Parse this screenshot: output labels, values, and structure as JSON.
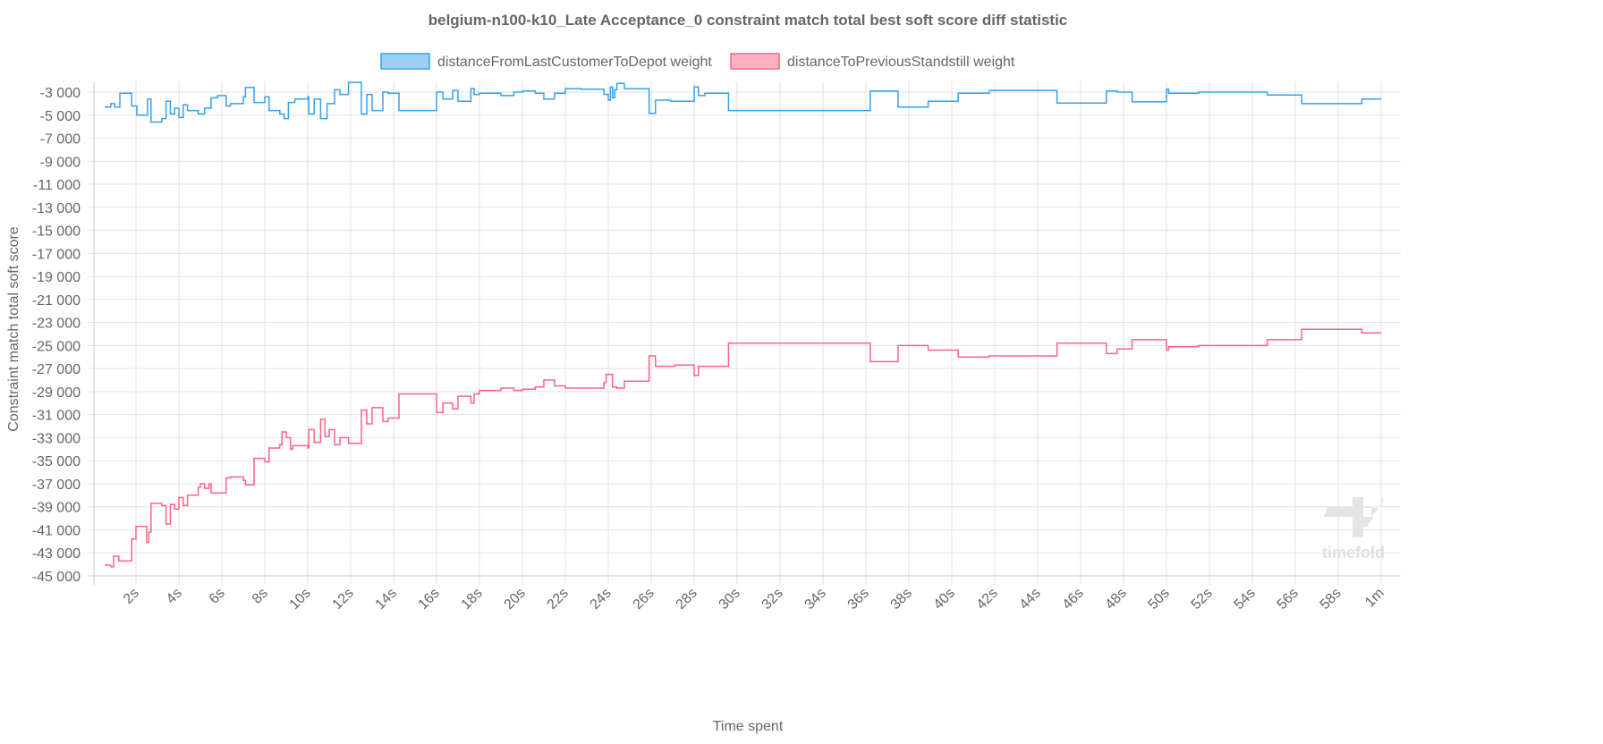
{
  "chart_data": {
    "type": "line",
    "step": true,
    "title": "belgium-n100-k10_Late Acceptance_0 constraint match total best soft score diff statistic",
    "xlabel": "Time spent",
    "ylabel": "Constraint match total soft score",
    "xlim": [
      0,
      61
    ],
    "ylim": [
      -45000,
      -2000
    ],
    "grid": true,
    "legend_position": "top",
    "x_ticks": [
      {
        "value": 2,
        "label": "2s"
      },
      {
        "value": 4,
        "label": "4s"
      },
      {
        "value": 6,
        "label": "6s"
      },
      {
        "value": 8,
        "label": "8s"
      },
      {
        "value": 10,
        "label": "10s"
      },
      {
        "value": 12,
        "label": "12s"
      },
      {
        "value": 14,
        "label": "14s"
      },
      {
        "value": 16,
        "label": "16s"
      },
      {
        "value": 18,
        "label": "18s"
      },
      {
        "value": 20,
        "label": "20s"
      },
      {
        "value": 22,
        "label": "22s"
      },
      {
        "value": 24,
        "label": "24s"
      },
      {
        "value": 26,
        "label": "26s"
      },
      {
        "value": 28,
        "label": "28s"
      },
      {
        "value": 30,
        "label": "30s"
      },
      {
        "value": 32,
        "label": "32s"
      },
      {
        "value": 34,
        "label": "34s"
      },
      {
        "value": 36,
        "label": "36s"
      },
      {
        "value": 38,
        "label": "38s"
      },
      {
        "value": 40,
        "label": "40s"
      },
      {
        "value": 42,
        "label": "42s"
      },
      {
        "value": 44,
        "label": "44s"
      },
      {
        "value": 46,
        "label": "46s"
      },
      {
        "value": 48,
        "label": "48s"
      },
      {
        "value": 50,
        "label": "50s"
      },
      {
        "value": 52,
        "label": "52s"
      },
      {
        "value": 54,
        "label": "54s"
      },
      {
        "value": 56,
        "label": "56s"
      },
      {
        "value": 58,
        "label": "58s"
      },
      {
        "value": 60,
        "label": "1m"
      }
    ],
    "y_ticks": [
      {
        "value": -3000,
        "label": "-3 000"
      },
      {
        "value": -5000,
        "label": "-5 000"
      },
      {
        "value": -7000,
        "label": "-7 000"
      },
      {
        "value": -9000,
        "label": "-9 000"
      },
      {
        "value": -11000,
        "label": "-11 000"
      },
      {
        "value": -13000,
        "label": "-13 000"
      },
      {
        "value": -15000,
        "label": "-15 000"
      },
      {
        "value": -17000,
        "label": "-17 000"
      },
      {
        "value": -19000,
        "label": "-19 000"
      },
      {
        "value": -21000,
        "label": "-21 000"
      },
      {
        "value": -23000,
        "label": "-23 000"
      },
      {
        "value": -25000,
        "label": "-25 000"
      },
      {
        "value": -27000,
        "label": "-27 000"
      },
      {
        "value": -29000,
        "label": "-29 000"
      },
      {
        "value": -31000,
        "label": "-31 000"
      },
      {
        "value": -33000,
        "label": "-33 000"
      },
      {
        "value": -35000,
        "label": "-35 000"
      },
      {
        "value": -37000,
        "label": "-37 000"
      },
      {
        "value": -39000,
        "label": "-39 000"
      },
      {
        "value": -41000,
        "label": "-41 000"
      },
      {
        "value": -43000,
        "label": "-43 000"
      },
      {
        "value": -45000,
        "label": "-45 000"
      }
    ],
    "series": [
      {
        "name": "distanceFromLastCustomerToDepot weight",
        "color": "#36a2eb",
        "fill": "#9ad0f5",
        "points": [
          [
            0.54,
            -4300
          ],
          [
            0.83,
            -4000
          ],
          [
            1.0,
            -4300
          ],
          [
            1.25,
            -3100
          ],
          [
            1.8,
            -4200
          ],
          [
            2.04,
            -5000
          ],
          [
            2.54,
            -3600
          ],
          [
            2.7,
            -5600
          ],
          [
            3.2,
            -5300
          ],
          [
            3.4,
            -3800
          ],
          [
            3.6,
            -4900
          ],
          [
            3.8,
            -4400
          ],
          [
            4.0,
            -5200
          ],
          [
            4.2,
            -4100
          ],
          [
            4.4,
            -4600
          ],
          [
            4.9,
            -4900
          ],
          [
            5.2,
            -4400
          ],
          [
            5.5,
            -3500
          ],
          [
            5.8,
            -3300
          ],
          [
            6.2,
            -4200
          ],
          [
            6.4,
            -4000
          ],
          [
            7.0,
            -3400
          ],
          [
            7.1,
            -2600
          ],
          [
            7.5,
            -3900
          ],
          [
            8.0,
            -3400
          ],
          [
            8.2,
            -4600
          ],
          [
            8.7,
            -4900
          ],
          [
            8.9,
            -5300
          ],
          [
            9.1,
            -3900
          ],
          [
            9.4,
            -3600
          ],
          [
            10.0,
            -3400
          ],
          [
            10.05,
            -4900
          ],
          [
            10.3,
            -3600
          ],
          [
            10.6,
            -5300
          ],
          [
            10.9,
            -4000
          ],
          [
            11.25,
            -2800
          ],
          [
            11.5,
            -3200
          ],
          [
            11.9,
            -2150
          ],
          [
            12.5,
            -4900
          ],
          [
            12.75,
            -3200
          ],
          [
            13.0,
            -4600
          ],
          [
            13.5,
            -3000
          ],
          [
            13.75,
            -3100
          ],
          [
            14.25,
            -4600
          ],
          [
            16.0,
            -3000
          ],
          [
            16.3,
            -3600
          ],
          [
            16.75,
            -2850
          ],
          [
            17.0,
            -3800
          ],
          [
            17.6,
            -2700
          ],
          [
            17.75,
            -3200
          ],
          [
            18.0,
            -3100
          ],
          [
            19.0,
            -3300
          ],
          [
            19.6,
            -3000
          ],
          [
            20.0,
            -2900
          ],
          [
            20.6,
            -3100
          ],
          [
            21.0,
            -3600
          ],
          [
            21.5,
            -3100
          ],
          [
            22.0,
            -2700
          ],
          [
            22.75,
            -2750
          ],
          [
            23.8,
            -3200
          ],
          [
            24.0,
            -3700
          ],
          [
            24.1,
            -2550
          ],
          [
            24.2,
            -3500
          ],
          [
            24.3,
            -2800
          ],
          [
            24.4,
            -2250
          ],
          [
            24.75,
            -2700
          ],
          [
            25.9,
            -4850
          ],
          [
            26.2,
            -3700
          ],
          [
            26.9,
            -3800
          ],
          [
            28.0,
            -2550
          ],
          [
            28.2,
            -3300
          ],
          [
            28.5,
            -3100
          ],
          [
            29.6,
            -4600
          ],
          [
            36.2,
            -2900
          ],
          [
            37.5,
            -4300
          ],
          [
            38.9,
            -3800
          ],
          [
            40.3,
            -3100
          ],
          [
            41.75,
            -2850
          ],
          [
            44.9,
            -3950
          ],
          [
            47.2,
            -2900
          ],
          [
            47.7,
            -3000
          ],
          [
            48.4,
            -3850
          ],
          [
            50.0,
            -2750
          ],
          [
            50.1,
            -3100
          ],
          [
            51.5,
            -3000
          ],
          [
            54.7,
            -3250
          ],
          [
            56.3,
            -4000
          ],
          [
            59.1,
            -3600
          ],
          [
            60.0,
            -3600
          ]
        ]
      },
      {
        "name": "distanceToPreviousStandstill weight",
        "color": "#ff6384",
        "fill": "#ffb1c1",
        "points": [
          [
            0.54,
            -44070
          ],
          [
            0.83,
            -44200
          ],
          [
            0.96,
            -43300
          ],
          [
            1.2,
            -43700
          ],
          [
            1.8,
            -41800
          ],
          [
            2.0,
            -40700
          ],
          [
            2.5,
            -42100
          ],
          [
            2.6,
            -41200
          ],
          [
            2.7,
            -38700
          ],
          [
            3.2,
            -38900
          ],
          [
            3.4,
            -40500
          ],
          [
            3.6,
            -38800
          ],
          [
            3.8,
            -39200
          ],
          [
            4.0,
            -38200
          ],
          [
            4.2,
            -38900
          ],
          [
            4.4,
            -38000
          ],
          [
            4.9,
            -37300
          ],
          [
            5.0,
            -37000
          ],
          [
            5.2,
            -37400
          ],
          [
            5.4,
            -37000
          ],
          [
            5.5,
            -37800
          ],
          [
            6.2,
            -36500
          ],
          [
            6.4,
            -36400
          ],
          [
            7.0,
            -36700
          ],
          [
            7.1,
            -37100
          ],
          [
            7.5,
            -34800
          ],
          [
            8.0,
            -35100
          ],
          [
            8.2,
            -33900
          ],
          [
            8.7,
            -33600
          ],
          [
            8.8,
            -32500
          ],
          [
            9.0,
            -33000
          ],
          [
            9.2,
            -34000
          ],
          [
            9.3,
            -33700
          ],
          [
            10.0,
            -33900
          ],
          [
            10.05,
            -32300
          ],
          [
            10.3,
            -33400
          ],
          [
            10.6,
            -31400
          ],
          [
            10.8,
            -32900
          ],
          [
            11.0,
            -32300
          ],
          [
            11.25,
            -33600
          ],
          [
            11.5,
            -33000
          ],
          [
            11.9,
            -33500
          ],
          [
            12.5,
            -30600
          ],
          [
            12.75,
            -31800
          ],
          [
            13.0,
            -30400
          ],
          [
            13.5,
            -31600
          ],
          [
            13.75,
            -31300
          ],
          [
            14.25,
            -29200
          ],
          [
            16.0,
            -30800
          ],
          [
            16.3,
            -30000
          ],
          [
            16.75,
            -30500
          ],
          [
            17.0,
            -29400
          ],
          [
            17.6,
            -30000
          ],
          [
            17.75,
            -29200
          ],
          [
            18.0,
            -28900
          ],
          [
            19.0,
            -28700
          ],
          [
            19.6,
            -28900
          ],
          [
            20.0,
            -28800
          ],
          [
            20.6,
            -28600
          ],
          [
            21.0,
            -28000
          ],
          [
            21.5,
            -28500
          ],
          [
            22.0,
            -28700
          ],
          [
            23.8,
            -28200
          ],
          [
            23.9,
            -27500
          ],
          [
            24.2,
            -28600
          ],
          [
            24.4,
            -28700
          ],
          [
            24.75,
            -28100
          ],
          [
            25.9,
            -25900
          ],
          [
            26.2,
            -26800
          ],
          [
            27.1,
            -26700
          ],
          [
            28.0,
            -27600
          ],
          [
            28.2,
            -26800
          ],
          [
            29.6,
            -24800
          ],
          [
            36.2,
            -26400
          ],
          [
            37.5,
            -25000
          ],
          [
            38.9,
            -25400
          ],
          [
            40.3,
            -26000
          ],
          [
            41.75,
            -25900
          ],
          [
            44.9,
            -24800
          ],
          [
            47.2,
            -25700
          ],
          [
            47.7,
            -25300
          ],
          [
            48.4,
            -24500
          ],
          [
            50.0,
            -25400
          ],
          [
            50.1,
            -25100
          ],
          [
            51.5,
            -25000
          ],
          [
            54.7,
            -24500
          ],
          [
            56.3,
            -23600
          ],
          [
            59.1,
            -23900
          ],
          [
            60.0,
            -23900
          ]
        ]
      }
    ]
  },
  "watermark": {
    "text": "timefold"
  }
}
